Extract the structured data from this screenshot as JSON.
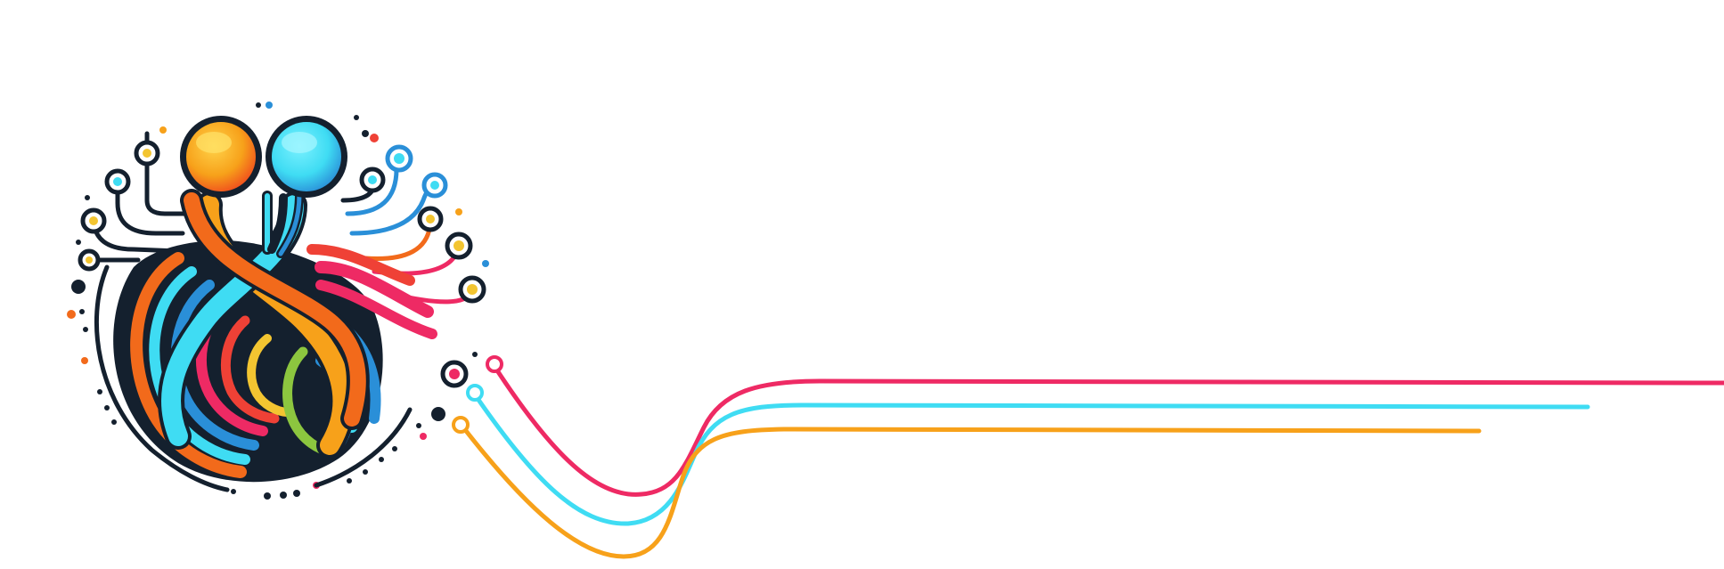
{
  "image": {
    "background": "#ffffff",
    "palette": {
      "outline": "#14202e",
      "orange": "#f7a11a",
      "orange_dark": "#f26a1b",
      "cyan": "#3fdcf3",
      "blue": "#2a8fd8",
      "pink": "#ee2a64",
      "yellow": "#f3c531",
      "green": "#8cc63f",
      "red": "#ef4136"
    },
    "icon": "two-figure-intertwined-circuit-icon",
    "trailing_lines": [
      {
        "color": "#ee2a64",
        "name": "pink-line"
      },
      {
        "color": "#3fdcf3",
        "name": "cyan-line"
      },
      {
        "color": "#f7a11a",
        "name": "orange-line"
      }
    ]
  }
}
